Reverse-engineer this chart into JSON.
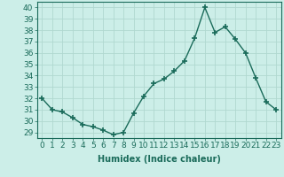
{
  "x": [
    0,
    1,
    2,
    3,
    4,
    5,
    6,
    7,
    8,
    9,
    10,
    11,
    12,
    13,
    14,
    15,
    16,
    17,
    18,
    19,
    20,
    21,
    22,
    23
  ],
  "y": [
    32,
    31,
    30.8,
    30.3,
    29.7,
    29.5,
    29.2,
    28.8,
    29.0,
    30.7,
    32.2,
    33.3,
    33.7,
    34.4,
    35.3,
    37.3,
    40.0,
    37.8,
    38.3,
    37.2,
    36.0,
    33.8,
    31.7,
    31.0
  ],
  "line_color": "#1a6b5a",
  "marker": "+",
  "marker_size": 5,
  "background_color": "#cceee8",
  "grid_color": "#b0d8d0",
  "xlabel": "Humidex (Indice chaleur)",
  "ylabel_ticks": [
    29,
    30,
    31,
    32,
    33,
    34,
    35,
    36,
    37,
    38,
    39,
    40
  ],
  "xlim": [
    -0.5,
    23.5
  ],
  "ylim": [
    28.5,
    40.5
  ],
  "xtick_labels": [
    "0",
    "1",
    "2",
    "3",
    "4",
    "5",
    "6",
    "7",
    "8",
    "9",
    "10",
    "11",
    "12",
    "13",
    "14",
    "15",
    "16",
    "17",
    "18",
    "19",
    "20",
    "21",
    "22",
    "23"
  ],
  "tick_color": "#1a6b5a",
  "label_color": "#1a6b5a",
  "xlabel_fontsize": 7,
  "tick_fontsize": 6.5,
  "linewidth": 1.0
}
